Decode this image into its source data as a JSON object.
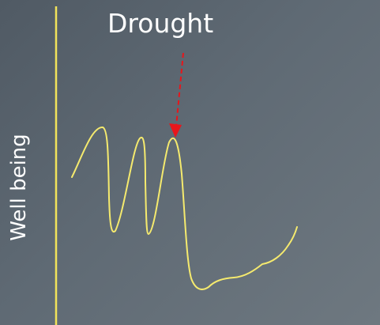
{
  "annotation": {
    "label": "Drought"
  },
  "axis": {
    "ylabel": "Well being"
  },
  "colors": {
    "axis_line": "#f2e35a",
    "curve": "#f5ea6e",
    "arrow": "#e8161b",
    "text": "#ffffff"
  }
}
